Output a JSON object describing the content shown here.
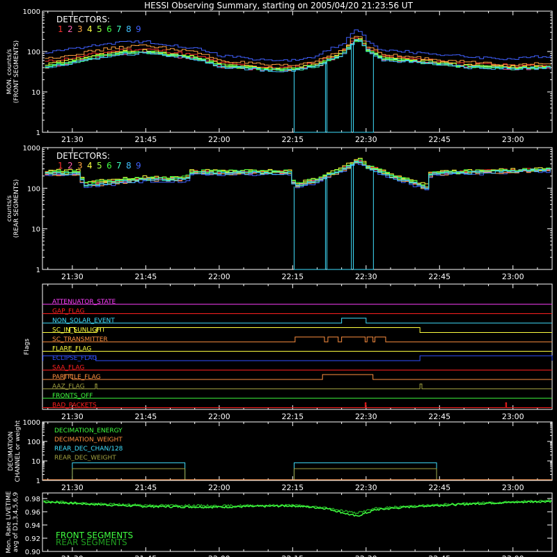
{
  "title": "HESSI Observing Summary, starting on 2005/04/20 21:23:56 UT",
  "time_ticks": [
    "21:30",
    "21:45",
    "22:00",
    "22:15",
    "22:30",
    "22:45",
    "23:00"
  ],
  "time_range_min": [
    1283.9,
    1388
  ],
  "tick_minutes": [
    1290,
    1305,
    1320,
    1335,
    1350,
    1365,
    1380
  ],
  "detectors": {
    "label": "DETECTORS:",
    "numbers": [
      "1",
      "2",
      "3",
      "4",
      "5",
      "6",
      "7",
      "8",
      "9"
    ],
    "colors": [
      "#ff3030",
      "#ff60b0",
      "#ffa040",
      "#ffff40",
      "#a0ff40",
      "#40ff40",
      "#40ffc0",
      "#40c0ff",
      "#4060ff"
    ]
  },
  "chart_data": [
    {
      "type": "line",
      "panel": "front",
      "ylabel_lines": [
        "MON. counts/s",
        "(FRONT SEGMENTS)"
      ],
      "yscale": "log",
      "ylim": [
        1,
        1000
      ],
      "yticks": [
        "1",
        "10",
        "100",
        "1000"
      ],
      "x_minutes": [
        1284,
        1290,
        1300,
        1305,
        1315,
        1320,
        1330,
        1335,
        1340,
        1345,
        1348,
        1350,
        1353,
        1360,
        1370,
        1380,
        1388
      ],
      "series": [
        {
          "values": [
            55,
            70,
            110,
            115,
            80,
            52,
            40,
            40,
            55,
            95,
            230,
            120,
            75,
            65,
            50,
            45,
            45
          ]
        },
        {
          "values": [
            40,
            55,
            90,
            95,
            65,
            42,
            35,
            35,
            45,
            80,
            200,
            110,
            65,
            55,
            42,
            38,
            40
          ]
        },
        {
          "values": [
            65,
            85,
            130,
            140,
            95,
            60,
            45,
            45,
            60,
            110,
            260,
            130,
            85,
            70,
            55,
            48,
            50
          ]
        },
        {
          "values": [
            48,
            62,
            100,
            105,
            72,
            48,
            38,
            38,
            50,
            90,
            215,
            115,
            70,
            60,
            46,
            42,
            43
          ]
        },
        {
          "values": [
            44,
            58,
            96,
            100,
            70,
            46,
            37,
            37,
            48,
            86,
            210,
            112,
            68,
            58,
            44,
            40,
            42
          ]
        },
        {
          "values": [
            42,
            56,
            92,
            98,
            68,
            44,
            36,
            36,
            46,
            84,
            205,
            110,
            66,
            56,
            43,
            39,
            41
          ]
        },
        {
          "values": [
            40,
            54,
            90,
            96,
            66,
            43,
            35,
            35,
            45,
            82,
            200,
            108,
            64,
            55,
            42,
            38,
            40
          ]
        },
        {
          "values": [
            38,
            52,
            86,
            92,
            64,
            42,
            34,
            34,
            44,
            80,
            195,
            106,
            62,
            53,
            41,
            37,
            39
          ]
        },
        {
          "values": [
            90,
            120,
            170,
            175,
            120,
            80,
            60,
            60,
            80,
            150,
            360,
            170,
            110,
            95,
            75,
            65,
            80
          ]
        }
      ],
      "dropouts": [
        [
          1335.3,
          1341.7
        ],
        [
          1342,
          1347
        ],
        [
          1347.4,
          1351.5
        ]
      ]
    },
    {
      "type": "line",
      "panel": "rear",
      "ylabel_lines": [
        "counts/s",
        "(REAR SEGMENTS)"
      ],
      "yscale": "log",
      "ylim": [
        1,
        1000
      ],
      "yticks": [
        "1",
        "10",
        "100",
        "1000"
      ],
      "x_minutes": [
        1284,
        1291,
        1292,
        1300,
        1305,
        1313,
        1314,
        1320,
        1334,
        1335,
        1340,
        1345,
        1348,
        1350,
        1355,
        1362,
        1363,
        1370,
        1380,
        1388
      ],
      "series": [
        {
          "values": [
            250,
            250,
            130,
            160,
            180,
            180,
            260,
            260,
            260,
            120,
            170,
            300,
            500,
            350,
            200,
            110,
            250,
            260,
            280,
            300
          ]
        },
        {
          "values": [
            230,
            230,
            120,
            150,
            170,
            170,
            240,
            240,
            240,
            110,
            160,
            280,
            470,
            330,
            190,
            100,
            235,
            245,
            265,
            285
          ]
        },
        {
          "values": [
            220,
            220,
            110,
            140,
            160,
            160,
            230,
            230,
            230,
            105,
            150,
            270,
            450,
            320,
            180,
            95,
            225,
            235,
            255,
            275
          ]
        },
        {
          "values": [
            270,
            270,
            140,
            170,
            190,
            190,
            270,
            270,
            270,
            130,
            180,
            320,
            550,
            370,
            210,
            120,
            260,
            270,
            290,
            310
          ]
        },
        {
          "values": [
            240,
            240,
            125,
            155,
            175,
            175,
            250,
            250,
            250,
            115,
            165,
            290,
            480,
            340,
            195,
            105,
            240,
            250,
            270,
            290
          ]
        },
        {
          "values": [
            260,
            260,
            135,
            165,
            185,
            185,
            265,
            265,
            265,
            125,
            175,
            310,
            520,
            360,
            205,
            115,
            255,
            265,
            285,
            305
          ]
        },
        {
          "values": [
            235,
            235,
            118,
            148,
            168,
            168,
            245,
            245,
            245,
            112,
            158,
            285,
            460,
            330,
            188,
            102,
            238,
            248,
            268,
            288
          ]
        },
        {
          "values": [
            225,
            225,
            112,
            142,
            162,
            162,
            235,
            235,
            235,
            108,
            152,
            275,
            440,
            320,
            182,
            98,
            230,
            240,
            260,
            280
          ]
        },
        {
          "values": [
            210,
            210,
            105,
            130,
            150,
            150,
            220,
            220,
            220,
            100,
            140,
            260,
            420,
            300,
            170,
            90,
            215,
            225,
            245,
            265
          ]
        }
      ],
      "dropouts": [
        [
          1335.3,
          1341.7
        ],
        [
          1342,
          1347
        ],
        [
          1347.4,
          1351.5
        ]
      ]
    }
  ],
  "flags_panel": {
    "ylabel": "Flags",
    "rows": [
      {
        "name": "ATTENUATOR_STATE",
        "color": "#ff40ff",
        "segments": []
      },
      {
        "name": "GAP_FLAG",
        "color": "#ff2020",
        "segments": []
      },
      {
        "name": "NON_SOLAR_EVENT",
        "color": "#40e0ff",
        "segments": [
          [
            1345,
            1350
          ]
        ]
      },
      {
        "name": "SC_IN_SUNLIGHT",
        "color": "#ffff40",
        "segments": [
          [
            1289.5,
            1290.5
          ],
          [
            1295,
            1361
          ]
        ]
      },
      {
        "name": "SC_TRANSMITTER",
        "color": "#ff9040",
        "segments": [
          [
            1335.5,
            1341.5
          ],
          [
            1342.2,
            1344.3
          ],
          [
            1345,
            1349.8
          ],
          [
            1350.2,
            1351.4
          ],
          [
            1351.8,
            1354
          ]
        ]
      },
      {
        "name": "FLARE_FLAG",
        "color": "#ffff40",
        "segments": []
      },
      {
        "name": "ECLIPSE_FLAG",
        "color": "#3050ff",
        "segments": [
          [
            1284,
            1294.8
          ],
          [
            1361,
            1388
          ]
        ]
      },
      {
        "name": "SAA_FLAG",
        "color": "#ff2020",
        "segments": []
      },
      {
        "name": "PARTICLE_FLAG",
        "color": "#ff9040",
        "segments": [
          [
            1288.4,
            1290
          ],
          [
            1341.1,
            1351.4
          ]
        ]
      },
      {
        "name": "AAZ_FLAG",
        "color": "#a0a040",
        "segments": [
          [
            1294.7,
            1295
          ],
          [
            1361,
            1361.4
          ]
        ]
      },
      {
        "name": "FRONTS_OFF",
        "color": "#40ff40",
        "segments": []
      },
      {
        "name": "BAD_PACKETS",
        "color": "#ff2020",
        "segments": [
          [
            1349.8,
            1350
          ],
          [
            1378.5,
            1378.7
          ]
        ]
      }
    ]
  },
  "decimation_panel": {
    "ylabel_lines": [
      "DECIMATION",
      "CHANNEL or weight"
    ],
    "yticks": [
      "1",
      "10",
      "100",
      "1000"
    ],
    "legend": [
      {
        "name": "DECIMATION_ENERGY",
        "color": "#40ff40"
      },
      {
        "name": "DECIMATION_WEIGHT",
        "color": "#ff9040"
      },
      {
        "name": "REAR_DEC_CHAN/128",
        "color": "#40e0ff"
      },
      {
        "name": "REAR_DEC_WEIGHT",
        "color": "#a0a040"
      }
    ],
    "series": [
      {
        "color": "#40e0ff",
        "level": 8,
        "segments": [
          [
            1290,
            1313
          ],
          [
            1335.3,
            1364.4
          ]
        ]
      },
      {
        "color": "#a0a040",
        "level": 4,
        "segments": [
          [
            1290,
            1313
          ],
          [
            1335.3,
            1364.4
          ]
        ]
      }
    ]
  },
  "livetime_panel": {
    "ylabel_lines": [
      "Mon. Rate LIVETIME",
      "avg of D1,3,4,5,6,9"
    ],
    "ylim": [
      0.9,
      0.98
    ],
    "yticks": [
      "0.90",
      "0.92",
      "0.94",
      "0.96",
      "0.98"
    ],
    "legend": [
      {
        "name": "FRONT SEGMENTS",
        "color": "#40ff40"
      },
      {
        "name": "REAR SEGMENTS",
        "color": "#20a020"
      }
    ],
    "x_minutes": [
      1284,
      1295,
      1305,
      1320,
      1335,
      1342,
      1348,
      1352,
      1360,
      1375,
      1388
    ],
    "front": [
      0.975,
      0.971,
      0.968,
      0.967,
      0.969,
      0.965,
      0.953,
      0.963,
      0.968,
      0.973,
      0.976
    ],
    "rear": [
      0.976,
      0.972,
      0.97,
      0.969,
      0.97,
      0.966,
      0.958,
      0.965,
      0.969,
      0.974,
      0.977
    ]
  }
}
